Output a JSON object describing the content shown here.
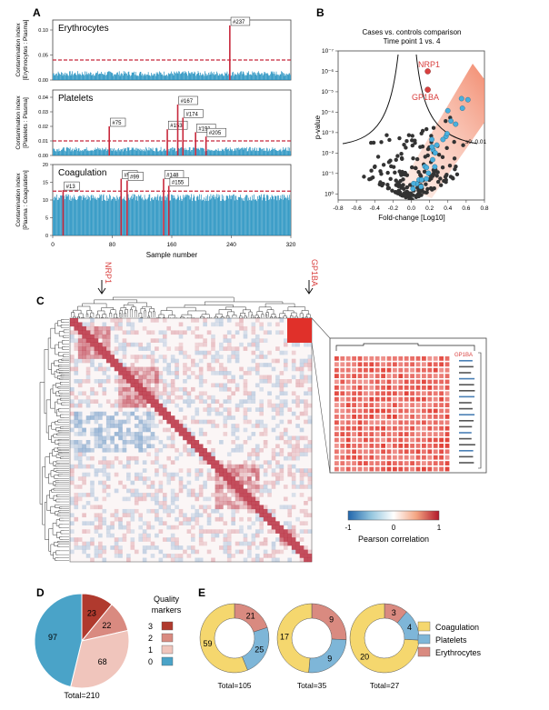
{
  "panels": {
    "A": {
      "label": "A",
      "xlabel": "Sample number",
      "xticks": [
        "0",
        "80",
        "160",
        "240",
        "320"
      ],
      "bar_color": "#1f8fbf",
      "threshold_color": "#c8283c",
      "subplots": [
        {
          "title": "Erythrocytes",
          "ylabel_1": "Contamination index",
          "ylabel_2": "[Erythrocytes : Plasma]",
          "yticks": [
            "0.00",
            "0.05",
            "0.10"
          ],
          "ylim": [
            0,
            0.12
          ],
          "threshold": 0.04,
          "outliers": [
            {
              "label": "#237",
              "x": 237,
              "y": 0.13
            }
          ]
        },
        {
          "title": "Platelets",
          "ylabel_1": "Contamination index",
          "ylabel_2": "[Platelets : Plasma]",
          "yticks": [
            "0.00",
            "0.01",
            "0.02",
            "0.03",
            "0.04"
          ],
          "ylim": [
            0,
            0.045
          ],
          "threshold": 0.01,
          "outliers": [
            {
              "label": "#75",
              "x": 75,
              "y": 0.02
            },
            {
              "label": "#153",
              "x": 153,
              "y": 0.018
            },
            {
              "label": "#167",
              "x": 167,
              "y": 0.035
            },
            {
              "label": "#174",
              "x": 174,
              "y": 0.026
            },
            {
              "label": "#191",
              "x": 191,
              "y": 0.016
            },
            {
              "label": "#205",
              "x": 205,
              "y": 0.013
            }
          ]
        },
        {
          "title": "Coagulation",
          "ylabel_1": "Contamination index",
          "ylabel_2": "[Plasma : Coagulation]",
          "yticks": [
            "0",
            "5",
            "10",
            "15",
            "20"
          ],
          "ylim": [
            0,
            20
          ],
          "threshold": 12.5,
          "outliers": [
            {
              "label": "#13",
              "x": 13,
              "y": 12.8
            },
            {
              "label": "#91",
              "x": 91,
              "y": 16
            },
            {
              "label": "#99",
              "x": 99,
              "y": 15.5
            },
            {
              "label": "#148",
              "x": 148,
              "y": 16
            },
            {
              "label": "#155",
              "x": 155,
              "y": 14
            }
          ]
        }
      ]
    },
    "B": {
      "label": "B",
      "title_1": "Cases vs. controls comparison",
      "title_2": "Time point 1 vs. 4",
      "xlabel": "Fold-change [Log10]",
      "ylabel": "p-value",
      "xticks": [
        "-0.8",
        "-0.6",
        "-0.4",
        "-0.2",
        "0.0",
        "0.2",
        "0.4",
        "0.6",
        "0.8"
      ],
      "yticks": [
        "10⁰",
        "10⁻¹",
        "10⁻²",
        "10⁻³",
        "10⁻⁴",
        "10⁻⁵",
        "10⁻⁶",
        "10⁻⁷"
      ],
      "s0_label": "s0: 0.01",
      "highlight_1": {
        "label": "NRP1",
        "color": "#d9403f"
      },
      "highlight_2": {
        "label": "GP1BA",
        "color": "#d9403f"
      },
      "quality_point_color": "#4ab0de",
      "other_point_color": "#333333",
      "region_color": "#f08060"
    },
    "C": {
      "label": "C",
      "annotation_1": "NRP1",
      "annotation_2": "GP1BA",
      "inset_label": "GP1BA",
      "colorbar_ticks": [
        "-1",
        "0",
        "1"
      ],
      "colorbar_title": "Pearson correlation",
      "negative_color": "#2166ac",
      "positive_color": "#b2182b"
    },
    "D": {
      "label": "D",
      "legend_title_1": "Quality",
      "legend_title_2": "markers",
      "total": "Total=210",
      "slices": [
        {
          "label": "3",
          "value": 23,
          "color": "#b03a2e"
        },
        {
          "label": "2",
          "value": 22,
          "color": "#d98a80"
        },
        {
          "label": "1",
          "value": 68,
          "color": "#f0c5bc"
        },
        {
          "label": "0",
          "value": 97,
          "color": "#4aa3c8"
        }
      ]
    },
    "E": {
      "label": "E",
      "legend": [
        {
          "label": "Coagulation",
          "color": "#f5d76e"
        },
        {
          "label": "Platelets",
          "color": "#7eb6d8"
        },
        {
          "label": "Erythrocytes",
          "color": "#d98a80"
        }
      ],
      "donuts": [
        {
          "total": "Total=105",
          "values": {
            "coagulation": 59,
            "platelets": 25,
            "erythrocytes": 21
          }
        },
        {
          "total": "Total=35",
          "values": {
            "coagulation": 17,
            "platelets": 9,
            "erythrocytes": 9
          }
        },
        {
          "total": "Total=27",
          "values": {
            "coagulation": 20,
            "platelets": 4,
            "erythrocytes": 3
          }
        }
      ]
    }
  },
  "chart_data": [
    {
      "type": "bar",
      "title": "Erythrocytes",
      "xlabel": "Sample number",
      "ylabel": "Contamination index [Erythrocytes : Plasma]",
      "xlim": [
        0,
        320
      ],
      "ylim": [
        0,
        0.12
      ],
      "threshold": 0.04,
      "outliers": [
        {
          "sample": 237,
          "value": 0.13
        }
      ]
    },
    {
      "type": "bar",
      "title": "Platelets",
      "xlabel": "Sample number",
      "ylabel": "Contamination index [Platelets : Plasma]",
      "xlim": [
        0,
        320
      ],
      "ylim": [
        0,
        0.045
      ],
      "threshold": 0.01,
      "outliers": [
        {
          "sample": 75,
          "value": 0.02
        },
        {
          "sample": 153,
          "value": 0.018
        },
        {
          "sample": 167,
          "value": 0.035
        },
        {
          "sample": 174,
          "value": 0.026
        },
        {
          "sample": 191,
          "value": 0.016
        },
        {
          "sample": 205,
          "value": 0.013
        }
      ]
    },
    {
      "type": "bar",
      "title": "Coagulation",
      "xlabel": "Sample number",
      "ylabel": "Contamination index [Plasma : Coagulation]",
      "xlim": [
        0,
        320
      ],
      "ylim": [
        0,
        20
      ],
      "threshold": 12.5,
      "outliers": [
        {
          "sample": 13,
          "value": 12.8
        },
        {
          "sample": 91,
          "value": 16
        },
        {
          "sample": 99,
          "value": 15.5
        },
        {
          "sample": 148,
          "value": 16
        },
        {
          "sample": 155,
          "value": 14
        }
      ]
    },
    {
      "type": "scatter",
      "title": "Cases vs. controls comparison Time point 1 vs. 4",
      "xlabel": "Fold-change [Log10]",
      "ylabel": "p-value",
      "xlim": [
        -0.8,
        0.8
      ],
      "y_scale": "log",
      "ylim": [
        1,
        1e-07
      ],
      "highlighted": [
        {
          "name": "NRP1",
          "x": 0.15,
          "p": 1e-06
        },
        {
          "name": "GP1BA",
          "x": 0.15,
          "p": 1e-05
        }
      ]
    },
    {
      "type": "pie",
      "legend_title": "Quality markers",
      "categories": [
        "3",
        "2",
        "1",
        "0"
      ],
      "values": [
        23,
        22,
        68,
        97
      ],
      "total": 210
    },
    {
      "type": "pie",
      "categories": [
        "Coagulation",
        "Platelets",
        "Erythrocytes"
      ],
      "series": [
        {
          "values": [
            59,
            25,
            21
          ]
        },
        {
          "values": [
            17,
            9,
            9
          ]
        },
        {
          "values": [
            20,
            4,
            3
          ]
        }
      ]
    }
  ]
}
